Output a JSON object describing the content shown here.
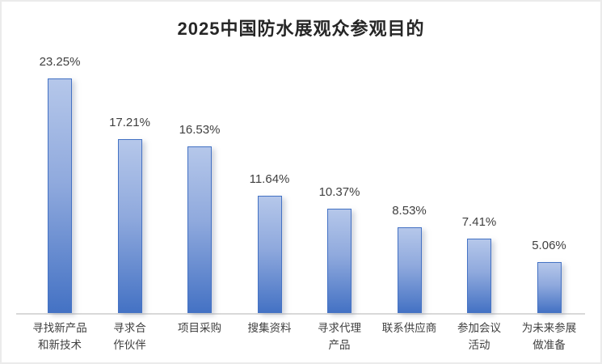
{
  "chart_data": {
    "type": "bar",
    "title": "2025中国防水展观众参观目的",
    "categories": [
      "寻找新产品\n和新技术",
      "寻求合\n作伙伴",
      "项目采购",
      "搜集资料",
      "寻求代理\n产品",
      "联系供应商",
      "参加会议\n活动",
      "为未来参展\n做准备"
    ],
    "values": [
      23.25,
      17.21,
      16.53,
      11.64,
      10.37,
      8.53,
      7.41,
      5.06
    ],
    "value_labels": [
      "23.25%",
      "17.21%",
      "16.53%",
      "11.64%",
      "10.37%",
      "8.53%",
      "7.41%",
      "5.06%"
    ],
    "xlabel": "",
    "ylabel": "",
    "ylim": [
      0,
      25
    ],
    "grid": false,
    "legend": null,
    "colors": {
      "bar_fill_top": "#b5c7ea",
      "bar_fill_bottom": "#4472c4",
      "bar_border": "#4472c4",
      "axis_line": "#d9d9d9",
      "title_text": "#262626",
      "label_text": "#404040"
    }
  }
}
